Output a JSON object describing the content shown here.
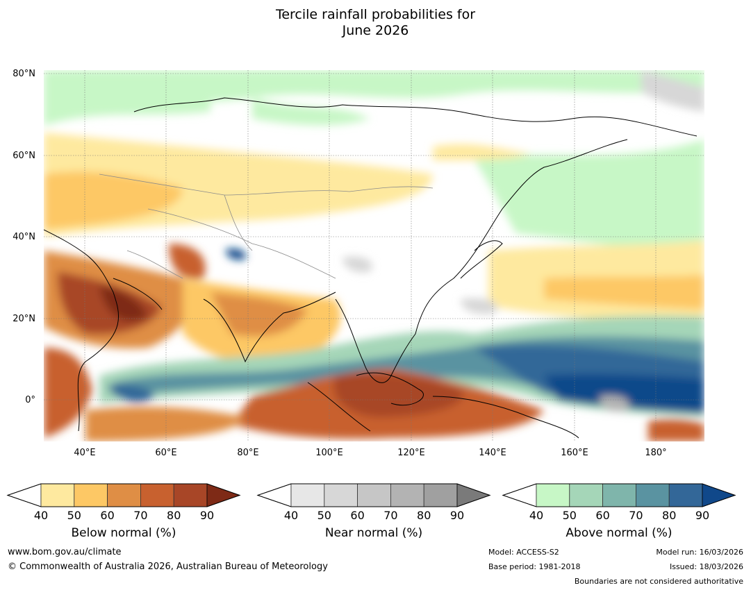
{
  "title": {
    "line1": "Tercile rainfall probabilities for",
    "line2": "June 2026"
  },
  "map": {
    "lat_labels": [
      "80°N",
      "60°N",
      "40°N",
      "20°N",
      "0°"
    ],
    "lon_labels": [
      "40°E",
      "60°E",
      "80°E",
      "100°E",
      "120°E",
      "140°E",
      "160°E",
      "180°"
    ]
  },
  "colorbars": [
    {
      "name": "below-normal",
      "caption": "Below normal (%)",
      "ticks": [
        "40",
        "50",
        "60",
        "70",
        "80",
        "90"
      ],
      "colors": [
        "#ffffff",
        "#fee99f",
        "#fdc865",
        "#df8e45",
        "#c8612f",
        "#a84627",
        "#7e2a16"
      ]
    },
    {
      "name": "near-normal",
      "caption": "Near normal (%)",
      "ticks": [
        "40",
        "50",
        "60",
        "70",
        "80",
        "90"
      ],
      "colors": [
        "#ffffff",
        "#e7e7e7",
        "#d7d7d7",
        "#c6c6c6",
        "#b3b3b3",
        "#a0a0a0",
        "#7a7a7a"
      ]
    },
    {
      "name": "above-normal",
      "caption": "Above normal (%)",
      "ticks": [
        "40",
        "50",
        "60",
        "70",
        "80",
        "90"
      ],
      "colors": [
        "#ffffff",
        "#c7f7c6",
        "#a5d6b8",
        "#7fb5ab",
        "#5a93a1",
        "#336798",
        "#10488a"
      ]
    }
  ],
  "footer": {
    "website": "www.bom.gov.au/climate",
    "copyright": "© Commonwealth of Australia 2026, Australian Bureau of Meteorology",
    "model": "Model: ACCESS-S2",
    "base_period": "Base period: 1981-2018",
    "model_run": "Model run: 16/03/2026",
    "issued": "Issued: 18/03/2026",
    "disclaimer": "Boundaries are not considered authoritative"
  }
}
